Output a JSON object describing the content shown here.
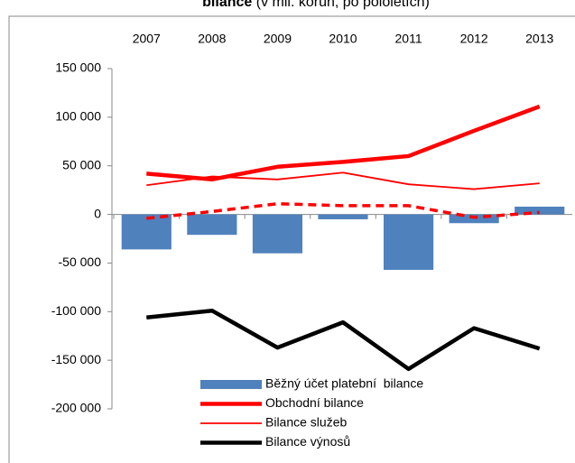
{
  "chart_data": {
    "type": "combo",
    "title": {
      "bold": "bilance",
      "rest": "(v mil. korun, po pololetích)"
    },
    "categories": [
      "2007",
      "2008",
      "2009",
      "2010",
      "2011",
      "2012",
      "2013"
    ],
    "ylim": [
      -200000,
      150000
    ],
    "yticks": [
      {
        "value": 150000,
        "label": "150 000"
      },
      {
        "value": 100000,
        "label": "100 000"
      },
      {
        "value": 50000,
        "label": "50 000"
      },
      0,
      {
        "value": -50000,
        "label": "-50 000"
      },
      {
        "value": -100000,
        "label": "-100 000"
      },
      {
        "value": -150000,
        "label": "-150 000"
      },
      {
        "value": -200000,
        "label": "-200 000"
      }
    ],
    "legend": "bottom-center",
    "series": [
      {
        "name": "Běžný účet platební  bilance",
        "type": "bar",
        "color": "#4f81bd",
        "values": [
          -36000,
          -21000,
          -40000,
          -5000,
          -57000,
          -9000,
          8000
        ]
      },
      {
        "name": "Obchodní bilance",
        "type": "line",
        "style": "thick",
        "color": "#ff0000",
        "values": [
          42000,
          36000,
          49000,
          54000,
          60000,
          86000,
          111000
        ]
      },
      {
        "name": "Bilance služeb",
        "type": "line",
        "style": "thin",
        "color": "#ff0000",
        "values": [
          30000,
          39000,
          36000,
          43000,
          31000,
          26000,
          32000
        ]
      },
      {
        "name": "Bilance výnosů",
        "type": "line",
        "style": "thick",
        "color": "#000000",
        "values": [
          -106000,
          -99000,
          -137000,
          -111000,
          -159000,
          -117000,
          -138000
        ]
      },
      {
        "type": "line",
        "style": "dashed",
        "color": "#ff0000",
        "values": [
          -4000,
          3000,
          11000,
          9000,
          9000,
          -3000,
          2000
        ]
      }
    ]
  }
}
